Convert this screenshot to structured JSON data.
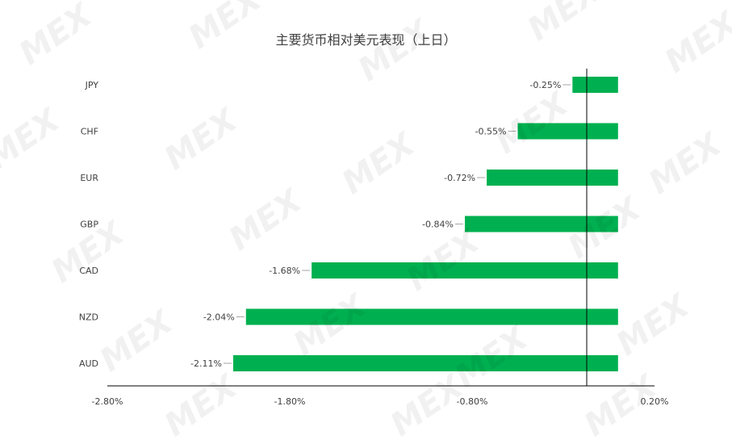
{
  "chart_data": {
    "type": "bar",
    "orientation": "horizontal",
    "title": "主要货币相对美元表现（上日）",
    "categories": [
      "JPY",
      "CHF",
      "EUR",
      "GBP",
      "CAD",
      "NZD",
      "AUD"
    ],
    "values": [
      -0.25,
      -0.55,
      -0.72,
      -0.84,
      -1.68,
      -2.04,
      -2.11
    ],
    "data_labels": [
      "-0.25%",
      "-0.55%",
      "-0.72%",
      "-0.84%",
      "-1.68%",
      "-2.04%",
      "-2.11%"
    ],
    "xlim": [
      -2.8,
      0.2
    ],
    "xticks": [
      -2.8,
      -1.8,
      -0.8,
      0.2
    ],
    "xtick_labels": [
      "-2.80%",
      "-1.80%",
      "-0.80%",
      "0.20%"
    ],
    "bar_color": "#00b050",
    "grid": false,
    "legend": "none"
  },
  "watermark": {
    "text": "MEX"
  }
}
